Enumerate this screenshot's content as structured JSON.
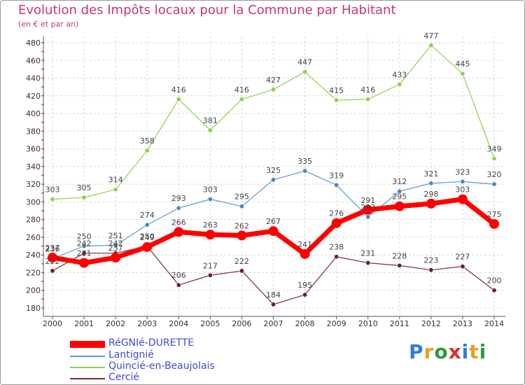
{
  "title": "Evolution des Impôts locaux pour la Commune par Habitant",
  "subtitle": "(en € et par an)",
  "logo": {
    "text": "Proxiti",
    "colors": [
      "#2d7fd6",
      "#e8a020",
      "#2d9a3a",
      "#d8322a",
      "#2d7fd6",
      "#e8a020",
      "#2d9a3a"
    ]
  },
  "chart_data": {
    "type": "line",
    "title": "Evolution des Impôts locaux pour la Commune par Habitant",
    "subtitle": "(en € et par an)",
    "x": [
      "2000",
      "2001",
      "2002",
      "2003",
      "2004",
      "2005",
      "2006",
      "2007",
      "2008",
      "2009",
      "2010",
      "2011",
      "2012",
      "2013",
      "2014"
    ],
    "ylim": [
      180,
      480
    ],
    "yticks": [
      180,
      200,
      220,
      240,
      260,
      280,
      300,
      320,
      340,
      360,
      380,
      400,
      420,
      440,
      460,
      480
    ],
    "grid": true,
    "legend_position": "bottom",
    "series": [
      {
        "name": "Quincié-en-Beaujolais",
        "color": "#8fd14f",
        "marker": "#8fd14f",
        "width": 1.2,
        "labels": true,
        "values": [
          303,
          305,
          314,
          358,
          416,
          381,
          416,
          427,
          447,
          415,
          416,
          433,
          477,
          445,
          349
        ]
      },
      {
        "name": "Lantignié",
        "color": "#5a9bd4",
        "marker": "#4a86c8",
        "width": 1.2,
        "labels": true,
        "values": [
          236,
          250,
          251,
          274,
          293,
          303,
          295,
          325,
          335,
          319,
          283,
          312,
          321,
          323,
          320
        ]
      },
      {
        "name": "Cercié",
        "color": "#7a2a35",
        "marker": "#6a1f2a",
        "width": 1.2,
        "labels": true,
        "values": [
          222,
          242,
          242,
          250,
          206,
          217,
          222,
          184,
          195,
          238,
          231,
          228,
          223,
          227,
          200
        ]
      },
      {
        "name": "RéGNIé-DURETTE",
        "color": "#ff0000",
        "marker": "#ff0000",
        "width": 7,
        "labels": true,
        "values": [
          237,
          231,
          237,
          249,
          266,
          263,
          262,
          267,
          241,
          276,
          291,
          295,
          298,
          303,
          275
        ]
      }
    ],
    "legend": [
      "RéGNIé-DURETTE",
      "Lantignié",
      "Quincié-en-Beaujolais",
      "Cercié"
    ]
  }
}
